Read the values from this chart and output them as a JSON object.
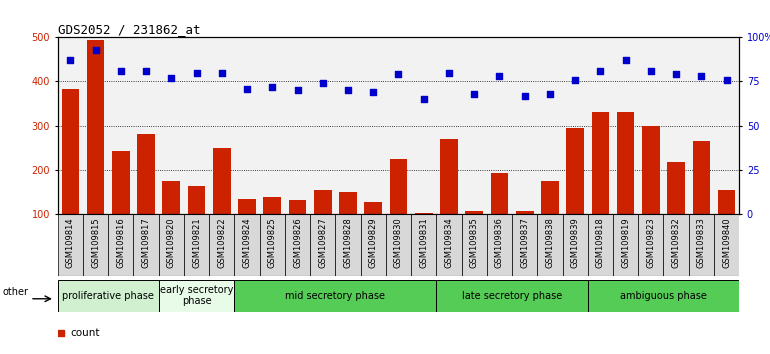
{
  "title": "GDS2052 / 231862_at",
  "samples": [
    "GSM109814",
    "GSM109815",
    "GSM109816",
    "GSM109817",
    "GSM109820",
    "GSM109821",
    "GSM109822",
    "GSM109824",
    "GSM109825",
    "GSM109826",
    "GSM109827",
    "GSM109828",
    "GSM109829",
    "GSM109830",
    "GSM109831",
    "GSM109834",
    "GSM109835",
    "GSM109836",
    "GSM109837",
    "GSM109838",
    "GSM109839",
    "GSM109818",
    "GSM109819",
    "GSM109823",
    "GSM109832",
    "GSM109833",
    "GSM109840"
  ],
  "counts": [
    383,
    493,
    243,
    281,
    175,
    163,
    249,
    135,
    138,
    131,
    155,
    150,
    127,
    225,
    103,
    271,
    107,
    194,
    107,
    175,
    295,
    330,
    330,
    300,
    218,
    265,
    155
  ],
  "percentiles": [
    87,
    93,
    81,
    81,
    77,
    80,
    80,
    71,
    72,
    70,
    74,
    70,
    69,
    79,
    65,
    80,
    68,
    78,
    67,
    68,
    76,
    81,
    87,
    81,
    79,
    78,
    76
  ],
  "phases": [
    {
      "name": "proliferative phase",
      "start": 0,
      "end": 4,
      "color": "#d0f0d0"
    },
    {
      "name": "early secretory\nphase",
      "start": 4,
      "end": 7,
      "color": "#e8fae8"
    },
    {
      "name": "mid secretory phase",
      "start": 7,
      "end": 15,
      "color": "#66dd66"
    },
    {
      "name": "late secretory phase",
      "start": 15,
      "end": 21,
      "color": "#66dd66"
    },
    {
      "name": "ambiguous phase",
      "start": 21,
      "end": 27,
      "color": "#66dd66"
    }
  ],
  "bar_color": "#cc2200",
  "dot_color": "#0000cc",
  "ylim_left": [
    100,
    500
  ],
  "ylim_right": [
    0,
    100
  ],
  "yticks_left": [
    100,
    200,
    300,
    400,
    500
  ],
  "yticks_right": [
    0,
    25,
    50,
    75,
    100
  ],
  "ytick_labels_right": [
    "0",
    "25",
    "50",
    "75",
    "100%"
  ],
  "tick_label_bg": "#d8d8d8",
  "bg_color": "#f2f2f2",
  "grid_color": "#000000",
  "title_fontsize": 9,
  "tick_fontsize": 6,
  "phase_label_fontsize": 7
}
